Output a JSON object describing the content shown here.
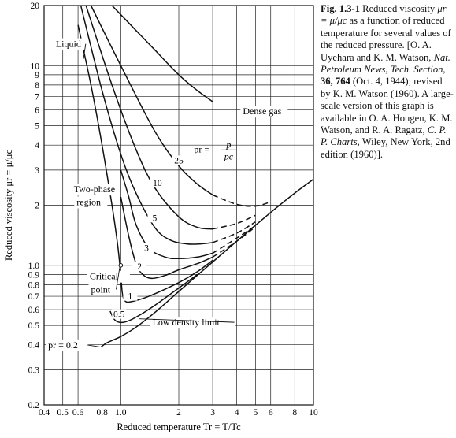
{
  "caption": {
    "fig_label": "Fig. 1.3-1",
    "seg1": " Reduced viscosity ",
    "math1": "μr = μ/μc",
    "seg2": " as a function of reduced temperature for several values of the reduced pressure. [O. A. Uyehara and K. M. Watson, ",
    "journal": "Nat. Petroleum News, Tech. Section",
    "seg3": ", ",
    "volume": "36, 764",
    "seg4": " (Oct. 4, 1944); revised by K. M. Watson (1960). A large-scale version of this graph is available in O. A. Hougen, K. M. Watson, and R. A. Ragatz, ",
    "book": "C. P. P. Charts",
    "seg5": ", Wiley, New York, 2nd edition (1960)]."
  },
  "chart_data": {
    "type": "line",
    "xscale": "log",
    "yscale": "log",
    "xlim": [
      0.4,
      10
    ],
    "ylim": [
      0.2,
      20
    ],
    "xlabel": "Reduced temperature Tr = T/Tc",
    "ylabel": "Reduced viscosity μr = μ/μc",
    "x_ticks": [
      0.4,
      0.5,
      0.6,
      0.8,
      1.0,
      2,
      3,
      4,
      5,
      6,
      8,
      10
    ],
    "x_tick_labels": [
      "0.4",
      "0.5",
      "0.6",
      "0.8",
      "1.0",
      "2",
      "3",
      "4",
      "5",
      "6",
      "8",
      "10"
    ],
    "y_ticks": [
      0.2,
      0.3,
      0.4,
      0.5,
      0.6,
      0.7,
      0.8,
      0.9,
      1.0,
      2,
      3,
      4,
      5,
      6,
      7,
      8,
      9,
      10,
      20
    ],
    "y_tick_labels": [
      "0.2",
      "0.3",
      "0.4",
      "0.5",
      "0.6",
      "0.7",
      "0.8",
      "0.9",
      "1.0",
      "2",
      "3",
      "4",
      "5",
      "6",
      "7",
      "8",
      "9",
      "10",
      "20"
    ],
    "grid": true,
    "series": [
      {
        "name": "0.2",
        "solid": [
          [
            0.79,
            0.39
          ],
          [
            0.85,
            0.41
          ],
          [
            1.0,
            0.44
          ],
          [
            1.2,
            0.49
          ],
          [
            1.5,
            0.58
          ],
          [
            2.0,
            0.74
          ],
          [
            3.0,
            1.04
          ],
          [
            4.0,
            1.32
          ],
          [
            6.0,
            1.84
          ],
          [
            8.0,
            2.3
          ],
          [
            10.0,
            2.7
          ]
        ],
        "dashed": []
      },
      {
        "name": "0.5",
        "solid": [
          [
            0.88,
            0.59
          ],
          [
            0.92,
            0.54
          ],
          [
            0.97,
            0.52
          ],
          [
            1.05,
            0.52
          ],
          [
            1.2,
            0.55
          ],
          [
            1.5,
            0.63
          ],
          [
            2.0,
            0.77
          ],
          [
            2.5,
            0.9
          ]
        ],
        "dashed": []
      },
      {
        "name": "1",
        "solid": [
          [
            0.6,
            16.0
          ],
          [
            0.7,
            8.0
          ],
          [
            0.8,
            4.0
          ],
          [
            0.9,
            2.0
          ],
          [
            0.96,
            1.3
          ],
          [
            1.0,
            0.9
          ],
          [
            1.02,
            0.72
          ],
          [
            1.06,
            0.66
          ],
          [
            1.15,
            0.66
          ],
          [
            1.4,
            0.7
          ],
          [
            2.0,
            0.82
          ],
          [
            2.5,
            0.93
          ],
          [
            3.0,
            1.06
          ]
        ],
        "dashed": []
      },
      {
        "name": "2",
        "solid": [
          [
            1.0,
            2.2
          ],
          [
            1.1,
            1.4
          ],
          [
            1.2,
            1.02
          ],
          [
            1.3,
            0.9
          ],
          [
            1.45,
            0.86
          ],
          [
            1.7,
            0.89
          ],
          [
            2.0,
            0.95
          ],
          [
            2.5,
            1.02
          ],
          [
            3.0,
            1.1
          ]
        ],
        "dashed": [
          [
            3.0,
            1.1
          ],
          [
            4.0,
            1.32
          ],
          [
            5.0,
            1.56
          ]
        ]
      },
      {
        "name": "3",
        "solid": [
          [
            1.0,
            3.0
          ],
          [
            1.1,
            2.2
          ],
          [
            1.2,
            1.6
          ],
          [
            1.4,
            1.22
          ],
          [
            1.7,
            1.1
          ],
          [
            2.0,
            1.08
          ],
          [
            2.5,
            1.1
          ],
          [
            3.0,
            1.15
          ]
        ],
        "dashed": [
          [
            3.0,
            1.15
          ],
          [
            4.0,
            1.37
          ],
          [
            5.0,
            1.58
          ]
        ]
      },
      {
        "name": "5",
        "solid": [
          [
            0.62,
            20.0
          ],
          [
            0.8,
            7.5
          ],
          [
            1.0,
            3.6
          ],
          [
            1.2,
            2.3
          ],
          [
            1.5,
            1.55
          ],
          [
            1.8,
            1.34
          ],
          [
            2.2,
            1.28
          ],
          [
            2.6,
            1.28
          ],
          [
            3.0,
            1.3
          ]
        ],
        "dashed": [
          [
            3.0,
            1.3
          ],
          [
            4.0,
            1.45
          ],
          [
            5.0,
            1.65
          ]
        ]
      },
      {
        "name": "10",
        "solid": [
          [
            0.66,
            20.0
          ],
          [
            0.9,
            8.0
          ],
          [
            1.2,
            3.8
          ],
          [
            1.5,
            2.45
          ],
          [
            2.0,
            1.75
          ],
          [
            2.5,
            1.55
          ],
          [
            3.0,
            1.52
          ]
        ],
        "dashed": [
          [
            3.0,
            1.52
          ],
          [
            4.0,
            1.62
          ],
          [
            5.0,
            1.78
          ]
        ]
      },
      {
        "name": "25",
        "solid": [
          [
            0.7,
            20.0
          ],
          [
            1.0,
            10.0
          ],
          [
            1.5,
            4.7
          ],
          [
            2.0,
            3.15
          ],
          [
            2.5,
            2.55
          ],
          [
            3.0,
            2.25
          ]
        ],
        "dashed": [
          [
            3.0,
            2.25
          ],
          [
            4.0,
            2.02
          ],
          [
            5.0,
            1.98
          ],
          [
            6.0,
            2.08
          ]
        ]
      },
      {
        "name": "liquid-branch",
        "solid": [
          [
            0.9,
            20.0
          ],
          [
            1.2,
            15.0
          ],
          [
            1.5,
            12.0
          ],
          [
            2.0,
            9.0
          ],
          [
            2.5,
            7.5
          ],
          [
            3.0,
            6.6
          ]
        ],
        "dashed": []
      }
    ],
    "critical_point": {
      "x": 1.0,
      "y": 1.0
    },
    "annotations": [
      {
        "id": "liquid",
        "text": "Liquid",
        "at": [
          0.46,
          12.4
        ],
        "arrow_to": [
          0.64,
          10.8
        ]
      },
      {
        "id": "dense-gas",
        "text": "Dense gas",
        "at": [
          4.3,
          5.7
        ]
      },
      {
        "id": "two-phase-1",
        "text": "Two-phase",
        "at": [
          0.57,
          2.32
        ]
      },
      {
        "id": "two-phase-2",
        "text": "region",
        "at": [
          0.59,
          2.0
        ]
      },
      {
        "id": "critical-1",
        "text": "Critical",
        "at": [
          0.69,
          0.85
        ]
      },
      {
        "id": "critical-2",
        "text": "point",
        "at": [
          0.7,
          0.73
        ],
        "arrow_to": [
          0.99,
          0.99
        ]
      },
      {
        "id": "low-density",
        "text": "Low density limit",
        "at": [
          1.46,
          0.5
        ],
        "arrow_to": [
          1.25,
          0.54
        ]
      },
      {
        "id": "pr-02",
        "text": "pr = 0.2",
        "at": [
          0.42,
          0.385
        ],
        "arrow_to": [
          0.78,
          0.39
        ]
      },
      {
        "id": "pr-def",
        "text": "pr =",
        "at": [
          2.4,
          3.68
        ]
      }
    ],
    "pr_formula": {
      "num": "p",
      "den": "pc"
    }
  }
}
